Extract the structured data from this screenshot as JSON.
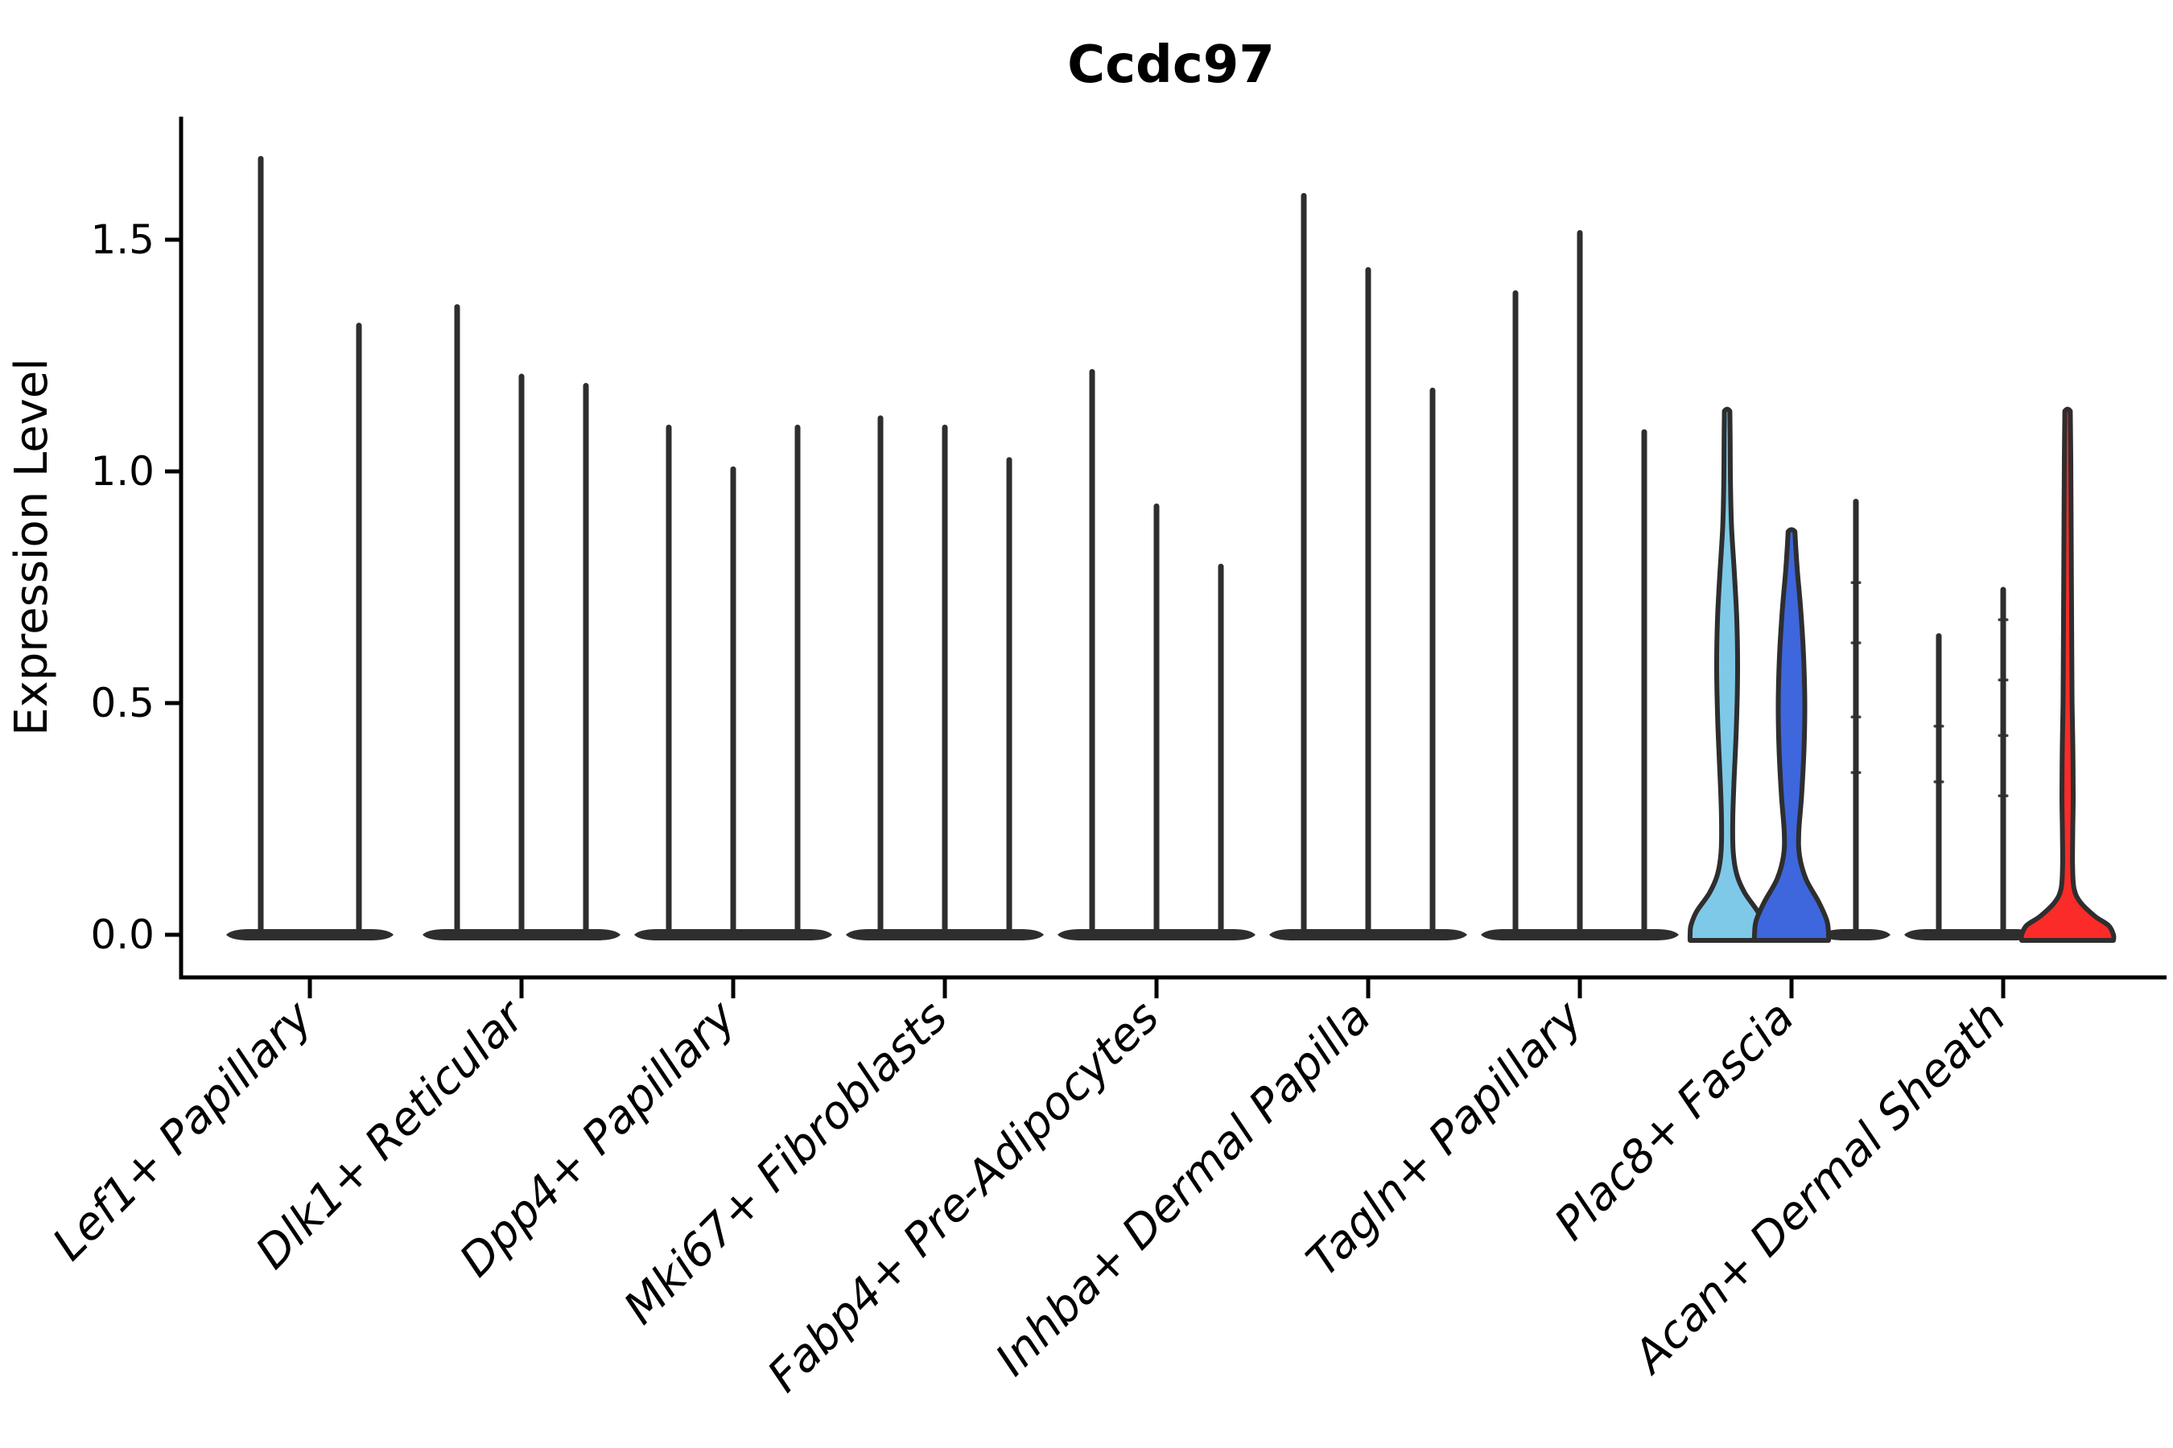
{
  "page": {
    "background": "#ffffff"
  },
  "chart_data": {
    "type": "violin",
    "title": "Ccdc97",
    "ylabel": "Expression Level",
    "xlabel": "",
    "legend": "none",
    "grid": false,
    "ylim": [
      -0.09,
      1.77
    ],
    "yticks": [
      0.0,
      0.5,
      1.0,
      1.5
    ],
    "ytick_labels": [
      "0.0",
      "0.5",
      "1.0",
      "1.5"
    ],
    "outline_color": "#2e2e2e",
    "axis_color": "#000000",
    "categories": [
      "Lef1+ Papillary",
      "Dlk1+ Reticular",
      "Dpp4+ Papillary",
      "Mki67+ Fibroblasts",
      "Fabp4+ Pre-Adipocytes",
      "Inhba+ Dermal Papilla",
      "Tagln+ Papillary",
      "Plac8+ Fascia",
      "Acan+ Dermal Sheath"
    ],
    "groups": [
      {
        "category": "Lef1+ Papillary",
        "violins": [
          {
            "max_expression": 1.68,
            "fill": "none"
          },
          {
            "max_expression": 1.32,
            "fill": "none"
          }
        ]
      },
      {
        "category": "Dlk1+ Reticular",
        "violins": [
          {
            "max_expression": 1.36,
            "fill": "none"
          },
          {
            "max_expression": 1.21,
            "fill": "none"
          },
          {
            "max_expression": 1.19,
            "fill": "none"
          }
        ]
      },
      {
        "category": "Dpp4+ Papillary",
        "violins": [
          {
            "max_expression": 1.1,
            "fill": "none"
          },
          {
            "max_expression": 1.01,
            "fill": "none"
          },
          {
            "max_expression": 1.1,
            "fill": "none"
          }
        ]
      },
      {
        "category": "Mki67+ Fibroblasts",
        "violins": [
          {
            "max_expression": 1.12,
            "fill": "none"
          },
          {
            "max_expression": 1.1,
            "fill": "none"
          },
          {
            "max_expression": 1.03,
            "fill": "none"
          }
        ]
      },
      {
        "category": "Fabp4+ Pre-Adipocytes",
        "violins": [
          {
            "max_expression": 1.22,
            "fill": "none"
          },
          {
            "max_expression": 0.93,
            "fill": "none"
          },
          {
            "max_expression": 0.8,
            "fill": "none"
          }
        ]
      },
      {
        "category": "Inhba+ Dermal Papilla",
        "violins": [
          {
            "max_expression": 1.6,
            "fill": "none"
          },
          {
            "max_expression": 1.44,
            "fill": "none"
          },
          {
            "max_expression": 1.18,
            "fill": "none"
          }
        ]
      },
      {
        "category": "Tagln+ Papillary",
        "violins": [
          {
            "max_expression": 1.39,
            "fill": "none"
          },
          {
            "max_expression": 1.52,
            "fill": "none"
          },
          {
            "max_expression": 1.09,
            "fill": "none"
          }
        ]
      },
      {
        "category": "Plac8+ Fascia",
        "violins": [
          {
            "max_expression": 1.13,
            "fill": "#7ec9e8",
            "profile": [
              [
                0,
                46
              ],
              [
                0.02,
                45
              ],
              [
                0.05,
                38
              ],
              [
                0.09,
                22
              ],
              [
                0.13,
                12
              ],
              [
                0.18,
                7.5
              ],
              [
                0.25,
                7
              ],
              [
                0.33,
                8.5
              ],
              [
                0.45,
                11.5
              ],
              [
                0.57,
                13
              ],
              [
                0.68,
                12
              ],
              [
                0.78,
                9
              ],
              [
                0.88,
                5.5
              ],
              [
                0.97,
                4.2
              ],
              [
                1.06,
                3.8
              ],
              [
                1.13,
                3.4
              ]
            ]
          },
          {
            "max_expression": 0.87,
            "fill": "#3e66dd",
            "profile": [
              [
                0,
                46
              ],
              [
                0.03,
                44
              ],
              [
                0.07,
                34
              ],
              [
                0.12,
                18
              ],
              [
                0.17,
                10
              ],
              [
                0.22,
                9
              ],
              [
                0.3,
                12.5
              ],
              [
                0.4,
                15.5
              ],
              [
                0.5,
                16.5
              ],
              [
                0.6,
                15
              ],
              [
                0.7,
                11.5
              ],
              [
                0.78,
                7.5
              ],
              [
                0.83,
                5.5
              ],
              [
                0.87,
                4.2
              ]
            ]
          },
          {
            "max_expression": 0.94,
            "fill": "none",
            "marks": [
              0.35,
              0.47,
              0.63,
              0.76
            ]
          }
        ]
      },
      {
        "category": "Acan+ Dermal Sheath",
        "violins": [
          {
            "max_expression": 0.65,
            "fill": "none",
            "marks": [
              0.33,
              0.45
            ]
          },
          {
            "max_expression": 0.75,
            "fill": "none",
            "marks": [
              0.3,
              0.43,
              0.55,
              0.68
            ]
          },
          {
            "max_expression": 1.13,
            "fill": "#fa2b28",
            "profile": [
              [
                0,
                57
              ],
              [
                0.02,
                51
              ],
              [
                0.04,
                34
              ],
              [
                0.07,
                16
              ],
              [
                0.1,
                8
              ],
              [
                0.15,
                6.2
              ],
              [
                0.22,
                6.4
              ],
              [
                0.3,
                7
              ],
              [
                0.4,
                6.6
              ],
              [
                0.5,
                5.6
              ],
              [
                0.62,
                5.2
              ],
              [
                0.75,
                4.8
              ],
              [
                0.9,
                4.4
              ],
              [
                1.03,
                4
              ],
              [
                1.13,
                3.4
              ]
            ]
          }
        ]
      }
    ]
  }
}
